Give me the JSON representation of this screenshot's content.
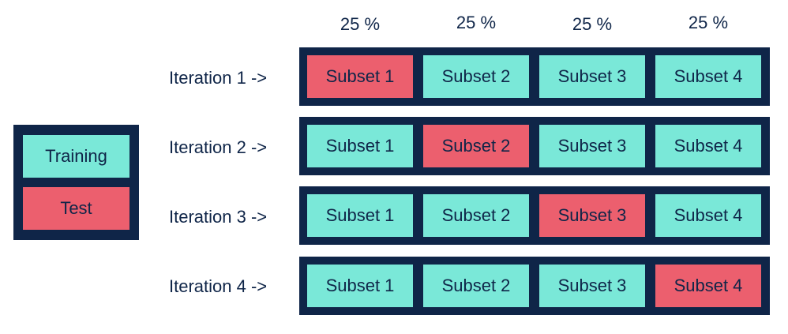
{
  "colors": {
    "training": "#7ae8d8",
    "test": "#ec5f6e",
    "frame": "#0f2548",
    "text": "#0f2548"
  },
  "percentages": [
    "25 %",
    "25 %",
    "25 %",
    "25 %"
  ],
  "legend": {
    "training_label": "Training",
    "test_label": "Test"
  },
  "iterations": [
    {
      "label": "Iteration 1 ->",
      "test_index": 0,
      "subsets": [
        "Subset 1",
        "Subset 2",
        "Subset 3",
        "Subset 4"
      ]
    },
    {
      "label": "Iteration 2 ->",
      "test_index": 1,
      "subsets": [
        "Subset 1",
        "Subset 2",
        "Subset 3",
        "Subset 4"
      ]
    },
    {
      "label": "Iteration 3 ->",
      "test_index": 2,
      "subsets": [
        "Subset 1",
        "Subset 2",
        "Subset 3",
        "Subset 4"
      ]
    },
    {
      "label": "Iteration 4 ->",
      "test_index": 3,
      "subsets": [
        "Subset 1",
        "Subset 2",
        "Subset 3",
        "Subset 4"
      ]
    }
  ]
}
